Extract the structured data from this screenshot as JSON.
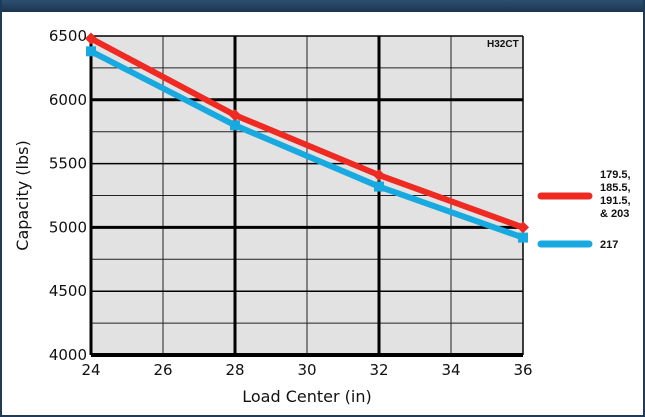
{
  "chart_data": {
    "type": "line",
    "model_label": "H32CT",
    "xlabel": "Load Center (in)",
    "ylabel": "Capacity (lbs)",
    "xlim": [
      24,
      36
    ],
    "ylim": [
      4000,
      6500
    ],
    "x_ticks": [
      "24",
      "26",
      "28",
      "30",
      "32",
      "34",
      "36"
    ],
    "y_ticks": [
      "4000",
      "4500",
      "5000",
      "5500",
      "6000",
      "6500"
    ],
    "grid": true,
    "legend_position": "right",
    "series": [
      {
        "name": "179.5, 185.5, 191.5, & 203",
        "legend_lines": [
          "179.5,",
          "185.5,",
          "191.5,",
          "& 203"
        ],
        "color": "#ee2a22",
        "marker": "diamond",
        "x": [
          24,
          28,
          32,
          36
        ],
        "y": [
          6480,
          5880,
          5410,
          5000
        ]
      },
      {
        "name": "217",
        "legend_lines": [
          "217"
        ],
        "color": "#17a9e0",
        "marker": "square",
        "x": [
          24,
          28,
          32,
          36
        ],
        "y": [
          6380,
          5800,
          5320,
          4920
        ]
      }
    ]
  }
}
